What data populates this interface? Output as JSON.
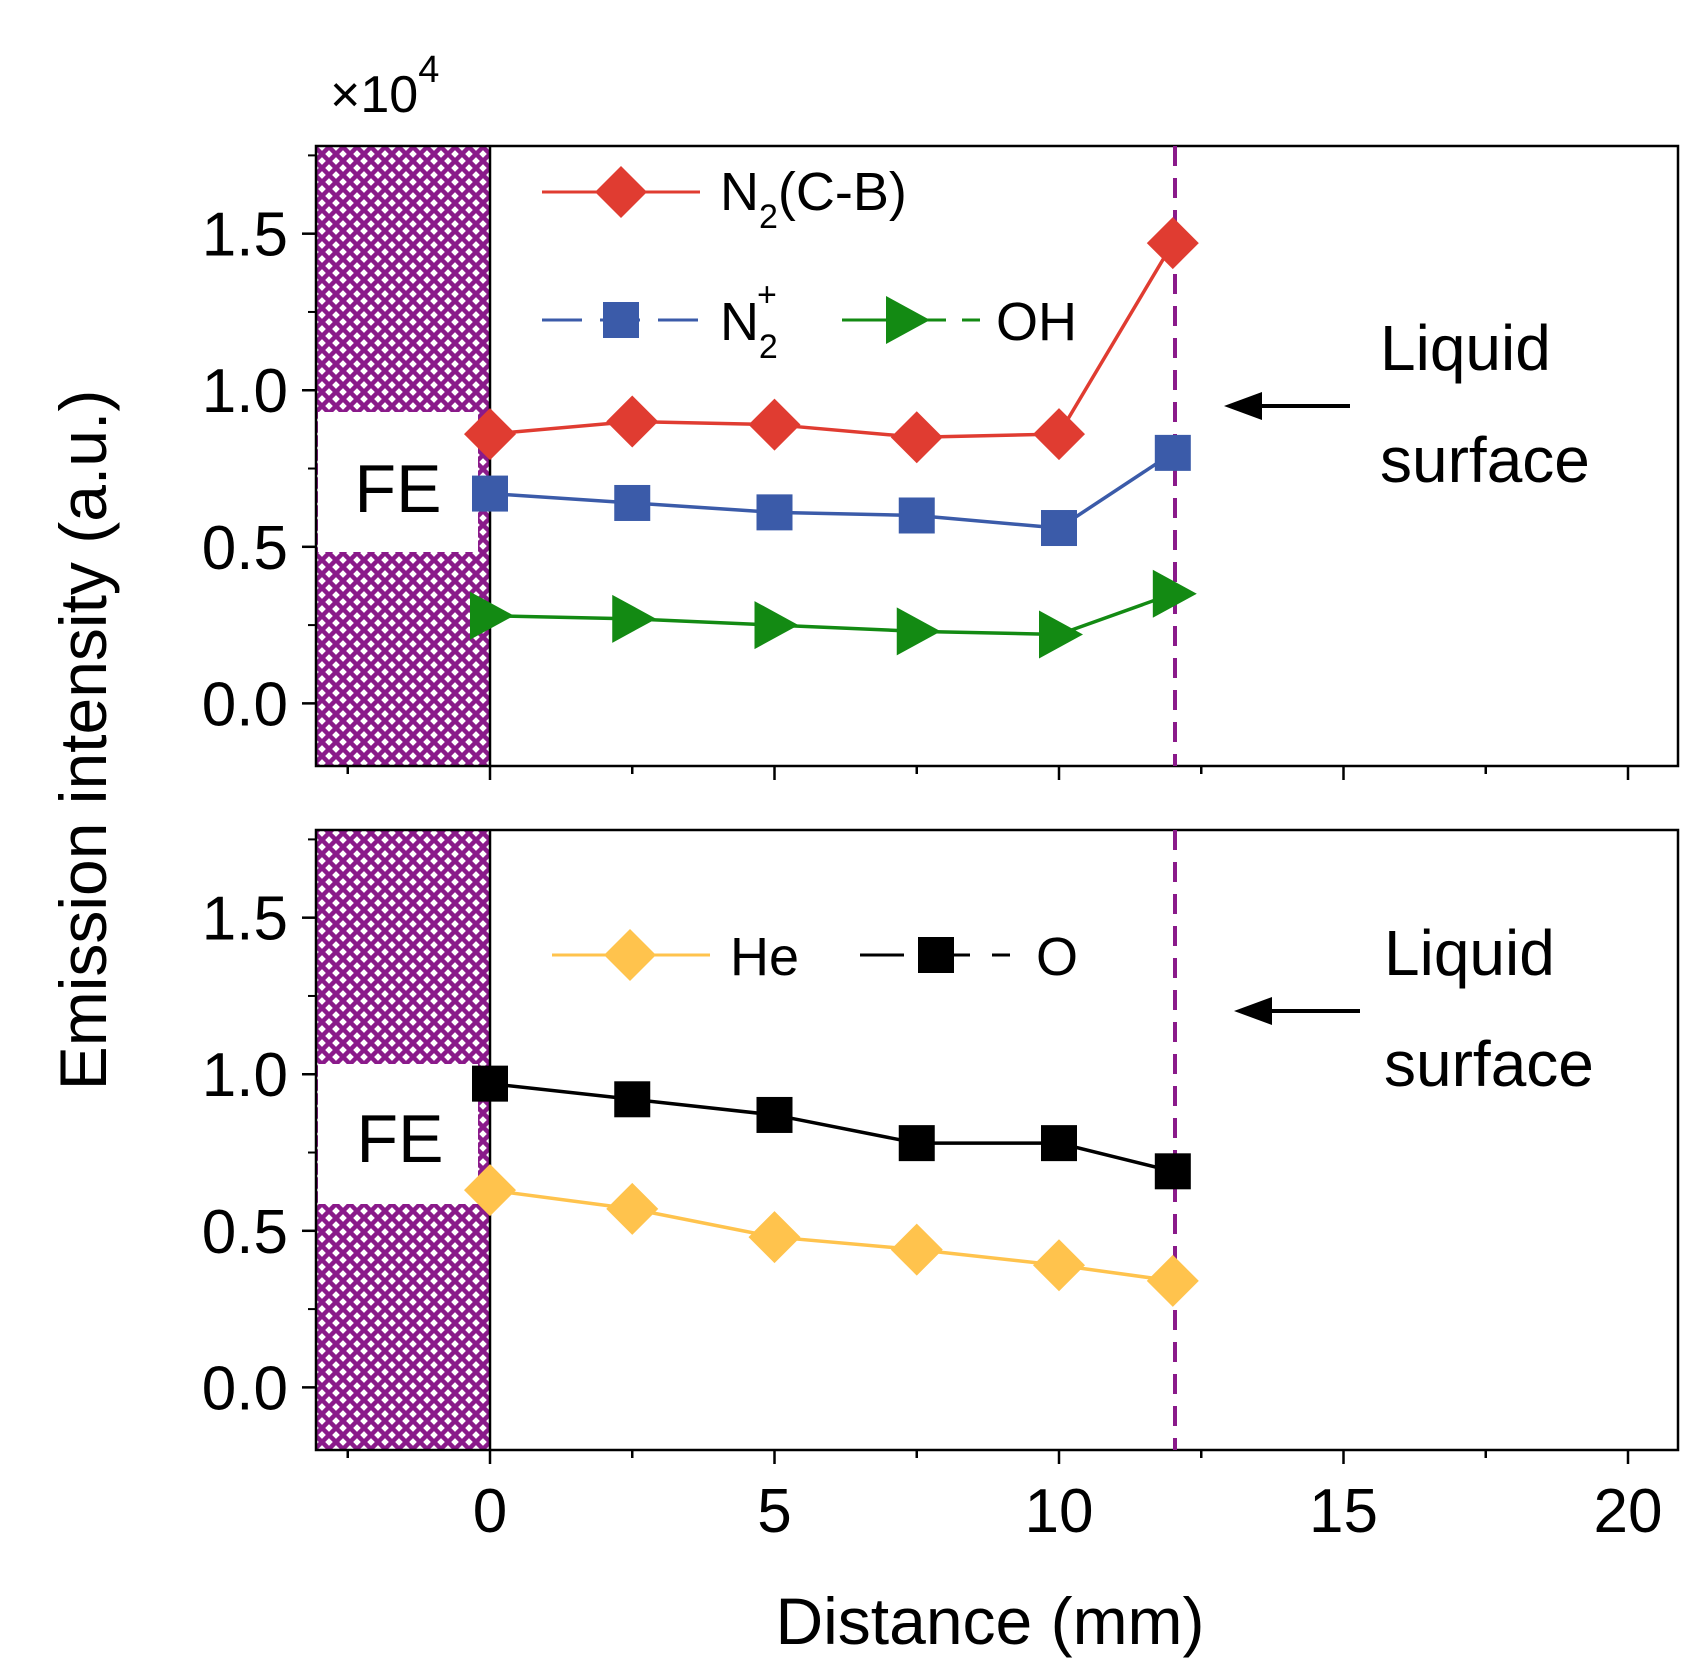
{
  "chart_data": [
    {
      "type": "line",
      "panel": "top",
      "x": [
        0,
        2.5,
        5,
        7.5,
        10,
        12
      ],
      "xlim": [
        -3,
        21
      ],
      "ylim": [
        -0.2,
        1.78
      ],
      "yticks": [
        "0.0",
        "0.5",
        "1.0",
        "1.5"
      ],
      "y_multiplier": {
        "base": "×10",
        "exponent": "4"
      },
      "series": [
        {
          "name": "N2(C-B)",
          "label_main": "N",
          "label_sub": "2",
          "label_rest": "(C-B)",
          "color": "#e03c31",
          "marker": "diamond",
          "values": [
            0.86,
            0.9,
            0.89,
            0.85,
            0.86,
            1.47
          ]
        },
        {
          "name": "N2+",
          "label_main": "N",
          "label_sub": "2",
          "label_sup": "+",
          "color": "#3b5ba9",
          "marker": "square",
          "values": [
            0.67,
            0.64,
            0.61,
            0.6,
            0.56,
            0.8
          ]
        },
        {
          "name": "OH",
          "label_main": "OH",
          "color": "#138a13",
          "marker": "triangle-right",
          "values": [
            0.28,
            0.27,
            0.25,
            0.23,
            0.22,
            0.35
          ]
        }
      ],
      "annotation": {
        "line1": "Liquid",
        "line2": "surface"
      },
      "region_label": "FE",
      "liquid_surface_x": 12.1
    },
    {
      "type": "line",
      "panel": "bottom",
      "x": [
        0,
        2.5,
        5,
        7.5,
        10,
        12
      ],
      "xlim": [
        -3,
        21
      ],
      "ylim": [
        -0.2,
        1.78
      ],
      "yticks": [
        "0.0",
        "0.5",
        "1.0",
        "1.5"
      ],
      "xticks": [
        "0",
        "5",
        "10",
        "15",
        "20"
      ],
      "series": [
        {
          "name": "He",
          "label_main": "He",
          "color": "#ffc34d",
          "marker": "diamond",
          "values": [
            0.63,
            0.57,
            0.48,
            0.44,
            0.39,
            0.34
          ]
        },
        {
          "name": "O",
          "label_main": "O",
          "color": "#000000",
          "marker": "square",
          "values": [
            0.97,
            0.92,
            0.87,
            0.78,
            0.78,
            0.69
          ]
        }
      ],
      "annotation": {
        "line1": "Liquid",
        "line2": "surface"
      },
      "region_label": "FE",
      "liquid_surface_x": 12.1
    }
  ],
  "axes": {
    "ylabel": "Emission intensity (a.u.)",
    "xlabel": "Distance (mm)"
  },
  "colors": {
    "fe_region": "#8a1a8a",
    "surface_line": "#8a1a8a"
  }
}
